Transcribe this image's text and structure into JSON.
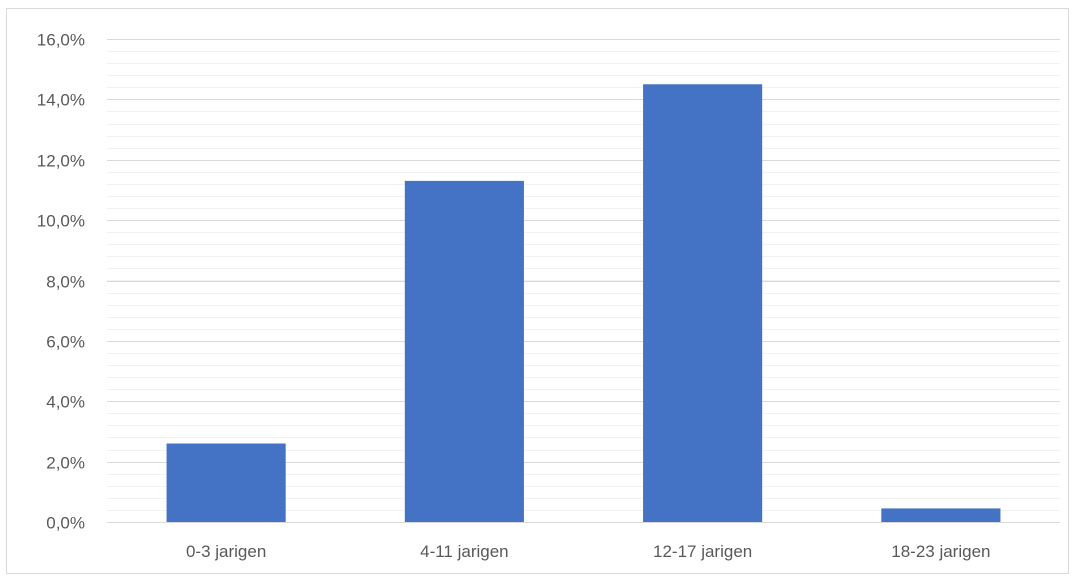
{
  "chart_data": {
    "type": "bar",
    "title": "",
    "xlabel": "",
    "ylabel": "",
    "categories": [
      "0-3 jarigen",
      "4-11 jarigen",
      "12-17 jarigen",
      "18-23 jarigen"
    ],
    "values": [
      0.026,
      0.113,
      0.145,
      0.0045
    ],
    "ylim": [
      0,
      0.16
    ],
    "yticks": [
      0,
      0.02,
      0.04,
      0.06,
      0.08,
      0.1,
      0.12,
      0.14,
      0.16
    ],
    "ytick_labels": [
      "0,0%",
      "2,0%",
      "4,0%",
      "6,0%",
      "8,0%",
      "10,0%",
      "12,0%",
      "14,0%",
      "16,0%"
    ],
    "minor_gridlines": true,
    "major_gridlines": true,
    "legend": "none",
    "colors": {
      "bar": "#4472c4",
      "major_grid": "#d9d9d9",
      "minor_grid": "#f2f2f2",
      "axis": "#d9d9d9",
      "text": "#595959",
      "border": "#d9d9d9"
    }
  }
}
